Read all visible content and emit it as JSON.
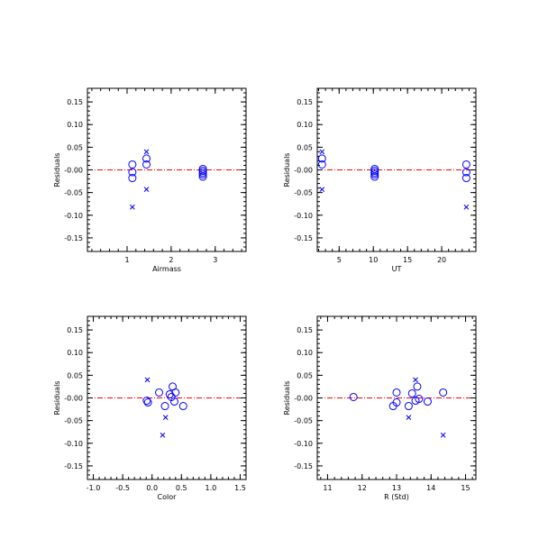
{
  "colors": {
    "marker": "#0000ff",
    "zero_line": "#ff0000",
    "axis": "#000000"
  },
  "chart_data": [
    {
      "type": "scatter",
      "xlabel": "Airmass",
      "ylabel": "Residuals",
      "xlim": [
        0.1,
        3.7
      ],
      "ylim": [
        -0.18,
        0.18
      ],
      "xticks": [
        1,
        2,
        3
      ],
      "yticks": [
        -0.15,
        -0.1,
        -0.05,
        0.0,
        0.05,
        0.1,
        0.15
      ],
      "ytick_labels": [
        "-0.15",
        "-0.10",
        "-0.05",
        "-0.00",
        "0.05",
        "0.10",
        "0.15"
      ],
      "reference_line_y": 0,
      "series": [
        {
          "marker": "circle",
          "points": [
            [
              1.12,
              0.012
            ],
            [
              1.12,
              -0.005
            ],
            [
              1.12,
              -0.018
            ],
            [
              1.44,
              0.025
            ],
            [
              1.44,
              0.012
            ],
            [
              2.72,
              0.002
            ],
            [
              2.72,
              -0.002
            ],
            [
              2.72,
              -0.006
            ],
            [
              2.72,
              -0.01
            ],
            [
              2.72,
              -0.015
            ]
          ]
        },
        {
          "marker": "x",
          "points": [
            [
              1.12,
              -0.082
            ],
            [
              1.44,
              0.04
            ],
            [
              1.44,
              -0.043
            ]
          ]
        }
      ]
    },
    {
      "type": "scatter",
      "xlabel": "UT",
      "ylabel": "Residuals",
      "xlim": [
        1.8,
        25
      ],
      "ylim": [
        -0.18,
        0.18
      ],
      "xticks": [
        5,
        10,
        15,
        20
      ],
      "yticks": [
        -0.15,
        -0.1,
        -0.05,
        0.0,
        0.05,
        0.1,
        0.15
      ],
      "ytick_labels": [
        "-0.15",
        "-0.10",
        "-0.05",
        "-0.00",
        "0.05",
        "0.10",
        "0.15"
      ],
      "reference_line_y": 0,
      "series": [
        {
          "marker": "circle",
          "points": [
            [
              2.5,
              0.025
            ],
            [
              2.5,
              0.012
            ],
            [
              10.2,
              0.002
            ],
            [
              10.2,
              -0.002
            ],
            [
              10.2,
              -0.006
            ],
            [
              10.2,
              -0.01
            ],
            [
              10.2,
              -0.015
            ],
            [
              23.6,
              0.012
            ],
            [
              23.6,
              -0.005
            ],
            [
              23.6,
              -0.018
            ]
          ]
        },
        {
          "marker": "x",
          "points": [
            [
              2.5,
              0.04
            ],
            [
              2.5,
              -0.043
            ],
            [
              23.6,
              -0.082
            ]
          ]
        }
      ]
    },
    {
      "type": "scatter",
      "xlabel": "Color",
      "ylabel": "Residuals",
      "xlim": [
        -1.1,
        1.6
      ],
      "ylim": [
        -0.18,
        0.18
      ],
      "xticks": [
        -1.0,
        -0.5,
        0.0,
        0.5,
        1.0,
        1.5
      ],
      "xtick_labels": [
        "-1.0",
        "-0.5",
        "0.0",
        "0.5",
        "1.0",
        "1.5"
      ],
      "yticks": [
        -0.15,
        -0.1,
        -0.05,
        0.0,
        0.05,
        0.1,
        0.15
      ],
      "ytick_labels": [
        "-0.15",
        "-0.10",
        "-0.05",
        "-0.00",
        "0.05",
        "0.10",
        "0.15"
      ],
      "reference_line_y": 0,
      "series": [
        {
          "marker": "circle",
          "points": [
            [
              -0.09,
              -0.006
            ],
            [
              -0.07,
              -0.01
            ],
            [
              0.12,
              0.012
            ],
            [
              0.22,
              -0.018
            ],
            [
              0.3,
              0.008
            ],
            [
              0.33,
              0.002
            ],
            [
              0.35,
              0.025
            ],
            [
              0.38,
              -0.008
            ],
            [
              0.4,
              0.012
            ],
            [
              0.53,
              -0.018
            ]
          ]
        },
        {
          "marker": "x",
          "points": [
            [
              -0.08,
              0.04
            ],
            [
              0.18,
              -0.082
            ],
            [
              0.23,
              -0.043
            ]
          ]
        }
      ]
    },
    {
      "type": "scatter",
      "xlabel": "R (Std)",
      "ylabel": "Residuals",
      "xlim": [
        10.7,
        15.3
      ],
      "ylim": [
        -0.18,
        0.18
      ],
      "xticks": [
        11,
        12,
        13,
        14,
        15
      ],
      "yticks": [
        -0.15,
        -0.1,
        -0.05,
        0.0,
        0.05,
        0.1,
        0.15
      ],
      "ytick_labels": [
        "-0.15",
        "-0.10",
        "-0.05",
        "-0.00",
        "0.05",
        "0.10",
        "0.15"
      ],
      "reference_line_y": 0,
      "series": [
        {
          "marker": "circle",
          "points": [
            [
              11.75,
              0.002
            ],
            [
              12.9,
              -0.018
            ],
            [
              13.0,
              0.012
            ],
            [
              13.0,
              -0.01
            ],
            [
              13.35,
              -0.018
            ],
            [
              13.45,
              0.01
            ],
            [
              13.55,
              -0.006
            ],
            [
              13.6,
              0.025
            ],
            [
              13.65,
              -0.002
            ],
            [
              13.9,
              -0.008
            ],
            [
              14.35,
              0.012
            ]
          ]
        },
        {
          "marker": "x",
          "points": [
            [
              13.35,
              -0.043
            ],
            [
              13.55,
              0.04
            ],
            [
              14.35,
              -0.082
            ]
          ]
        }
      ]
    }
  ]
}
